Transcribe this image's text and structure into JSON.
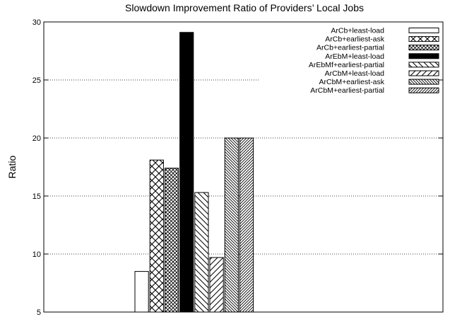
{
  "chart_data": {
    "type": "bar",
    "title": "Slowdown Improvement Ratio of Providers’ Local Jobs",
    "xlabel": "",
    "ylabel": "Ratio",
    "ylim": [
      5,
      30
    ],
    "yticks": [
      5,
      10,
      15,
      20,
      25,
      30
    ],
    "grid": "horizontal-dotted",
    "legend_position": "top-right",
    "series": [
      {
        "name": "ArCb+least-load",
        "value": 8.5,
        "pattern": "empty"
      },
      {
        "name": "ArCb+earliest-ask",
        "value": 18.1,
        "pattern": "crosshatch-large"
      },
      {
        "name": "ArCb+earliest-partial",
        "value": 17.4,
        "pattern": "crosshatch-small"
      },
      {
        "name": "ArEbM+least-load",
        "value": 29.1,
        "pattern": "solid"
      },
      {
        "name": "ArEbMf+earliest-partial",
        "value": 15.3,
        "pattern": "diag-down-wide"
      },
      {
        "name": "ArCbM+least-load",
        "value": 9.7,
        "pattern": "diag-up-wide"
      },
      {
        "name": "ArCbM+earliest-ask",
        "value": 20.0,
        "pattern": "diag-down-dense"
      },
      {
        "name": "ArCbM+earliest-partial",
        "value": 20.0,
        "pattern": "diag-up-dense"
      }
    ]
  }
}
